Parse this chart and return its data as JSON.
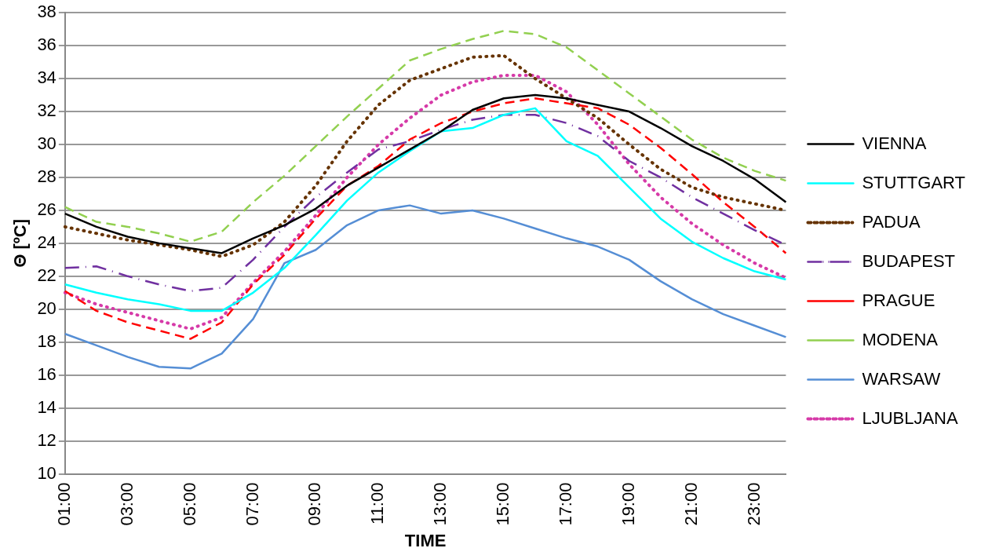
{
  "chart_data": {
    "type": "line",
    "xlabel": "TIME",
    "ylabel": "Θ [ºC]",
    "categories": [
      "01:00",
      null,
      "03:00",
      null,
      "05:00",
      null,
      "07:00",
      null,
      "09:00",
      null,
      "11:00",
      null,
      "13:00",
      null,
      "15:00",
      null,
      "17:00",
      null,
      "19:00",
      null,
      "21:00",
      null,
      "23:00",
      null
    ],
    "ylim": [
      10,
      38
    ],
    "yticks": [
      10,
      12,
      14,
      16,
      18,
      20,
      22,
      24,
      26,
      28,
      30,
      32,
      34,
      36,
      38
    ],
    "grid": "y",
    "legend": "right",
    "marker": "none",
    "series": [
      {
        "name": "VIENNA",
        "color": "#000000",
        "line_style": "solid",
        "values": [
          25.8,
          25.0,
          24.4,
          24.0,
          23.7,
          23.4,
          24.3,
          25.1,
          26.1,
          27.5,
          28.6,
          29.7,
          30.8,
          32.1,
          32.8,
          33.0,
          32.8,
          32.4,
          32.0,
          31.0,
          29.9,
          29.0,
          27.9,
          26.5
        ]
      },
      {
        "name": "STUTTGART",
        "color": "#00ffff",
        "line_style": "solid",
        "values": [
          21.5,
          21.0,
          20.6,
          20.3,
          19.9,
          19.9,
          21.0,
          22.5,
          24.5,
          26.6,
          28.3,
          29.6,
          30.8,
          31.0,
          31.8,
          32.2,
          30.2,
          29.3,
          27.4,
          25.5,
          24.1,
          23.1,
          22.3,
          21.8
        ]
      },
      {
        "name": "PADUA",
        "color": "#663300",
        "line_style": "dotted",
        "values": [
          25.0,
          24.6,
          24.2,
          23.9,
          23.6,
          23.2,
          23.9,
          25.3,
          27.5,
          30.2,
          32.4,
          33.9,
          34.6,
          35.3,
          35.4,
          34.0,
          32.8,
          31.6,
          30.0,
          28.5,
          27.4,
          26.8,
          26.4,
          26.0
        ]
      },
      {
        "name": "BUDAPEST",
        "color": "#7030a0",
        "line_style": "dashdot",
        "values": [
          22.5,
          22.6,
          22.0,
          21.5,
          21.1,
          21.3,
          23.0,
          25.0,
          26.8,
          28.3,
          29.7,
          30.2,
          30.9,
          31.5,
          31.8,
          31.8,
          31.3,
          30.5,
          29.0,
          28.0,
          26.8,
          25.8,
          24.8,
          23.9
        ]
      },
      {
        "name": "PRAGUE",
        "color": "#ff0000",
        "line_style": "dashed",
        "values": [
          21.1,
          19.9,
          19.2,
          18.7,
          18.2,
          19.2,
          21.5,
          23.3,
          25.5,
          27.5,
          28.7,
          30.3,
          31.3,
          32.0,
          32.5,
          32.8,
          32.5,
          32.2,
          31.2,
          29.8,
          28.2,
          26.5,
          25.0,
          23.4
        ]
      },
      {
        "name": "MODENA",
        "color": "#92d050",
        "line_style": "dashed",
        "values": [
          26.2,
          25.3,
          25.0,
          24.6,
          24.1,
          24.7,
          26.5,
          28.1,
          29.9,
          31.7,
          33.4,
          35.1,
          35.8,
          36.4,
          36.9,
          36.7,
          35.9,
          34.5,
          33.1,
          31.7,
          30.3,
          29.2,
          28.4,
          27.8
        ]
      },
      {
        "name": "WARSAW",
        "color": "#558ed5",
        "line_style": "solid",
        "values": [
          18.5,
          17.8,
          17.1,
          16.5,
          16.4,
          17.3,
          19.4,
          22.8,
          23.6,
          25.1,
          26.0,
          26.3,
          25.8,
          26.0,
          25.5,
          24.9,
          24.3,
          23.8,
          23.0,
          21.7,
          20.6,
          19.7,
          19.0,
          18.3
        ]
      },
      {
        "name": "LJUBLJANA",
        "color": "#d63aa8",
        "line_style": "dotted",
        "values": [
          21.0,
          20.3,
          19.8,
          19.3,
          18.8,
          19.5,
          21.6,
          23.5,
          25.7,
          28.0,
          30.0,
          31.6,
          33.0,
          33.8,
          34.2,
          34.2,
          33.2,
          31.2,
          28.8,
          26.8,
          25.2,
          23.9,
          22.8,
          21.9
        ]
      }
    ]
  }
}
